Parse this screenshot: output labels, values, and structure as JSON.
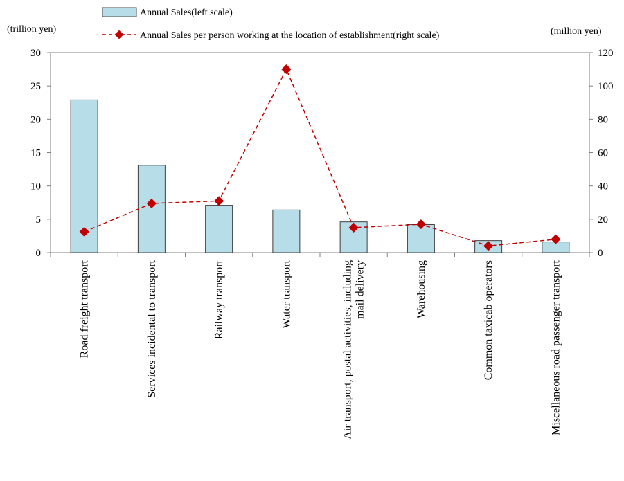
{
  "chart_data": {
    "type": "bar",
    "categories": [
      "Road freight transport",
      "Services incidental to transport",
      "Railway transport",
      "Water transport",
      "Air transport, postal activities, including mail delivery",
      "Warehousing",
      "Common taxicab operators",
      "Miscellaneous road passenger transport"
    ],
    "category_label_lines": [
      [
        "Road freight transport"
      ],
      [
        "Services incidental to transport"
      ],
      [
        "Railway transport"
      ],
      [
        "Water transport"
      ],
      [
        "Air transport, postal activities, including",
        "mail delivery"
      ],
      [
        "Warehousing"
      ],
      [
        "Common taxicab operators"
      ],
      [
        "Miscellaneous road passenger  transport"
      ]
    ],
    "series": [
      {
        "name": "Annual Sales(left scale)",
        "type": "bar",
        "axis": "left",
        "color": "#b7dde8",
        "values": [
          22.9,
          13.1,
          7.1,
          6.4,
          4.6,
          4.2,
          1.8,
          1.6
        ]
      },
      {
        "name": "Annual Sales per person working at the location of establishment(right scale)",
        "type": "line",
        "axis": "right",
        "color": "#c00000",
        "marker": "diamond",
        "line_style": "dashed",
        "values": [
          12.5,
          29.5,
          31.0,
          110.0,
          15.0,
          17.0,
          4.0,
          8.0
        ]
      }
    ],
    "ylabel_left": "(trillion  yen)",
    "ylabel_right": "(million  yen)",
    "ylim_left": [
      0,
      30
    ],
    "yticks_left": [
      0,
      5,
      10,
      15,
      20,
      25,
      30
    ],
    "ylim_right": [
      0,
      120
    ],
    "yticks_right": [
      0,
      20,
      40,
      60,
      80,
      100,
      120
    ],
    "grid": false,
    "legend_position": "top-center"
  }
}
